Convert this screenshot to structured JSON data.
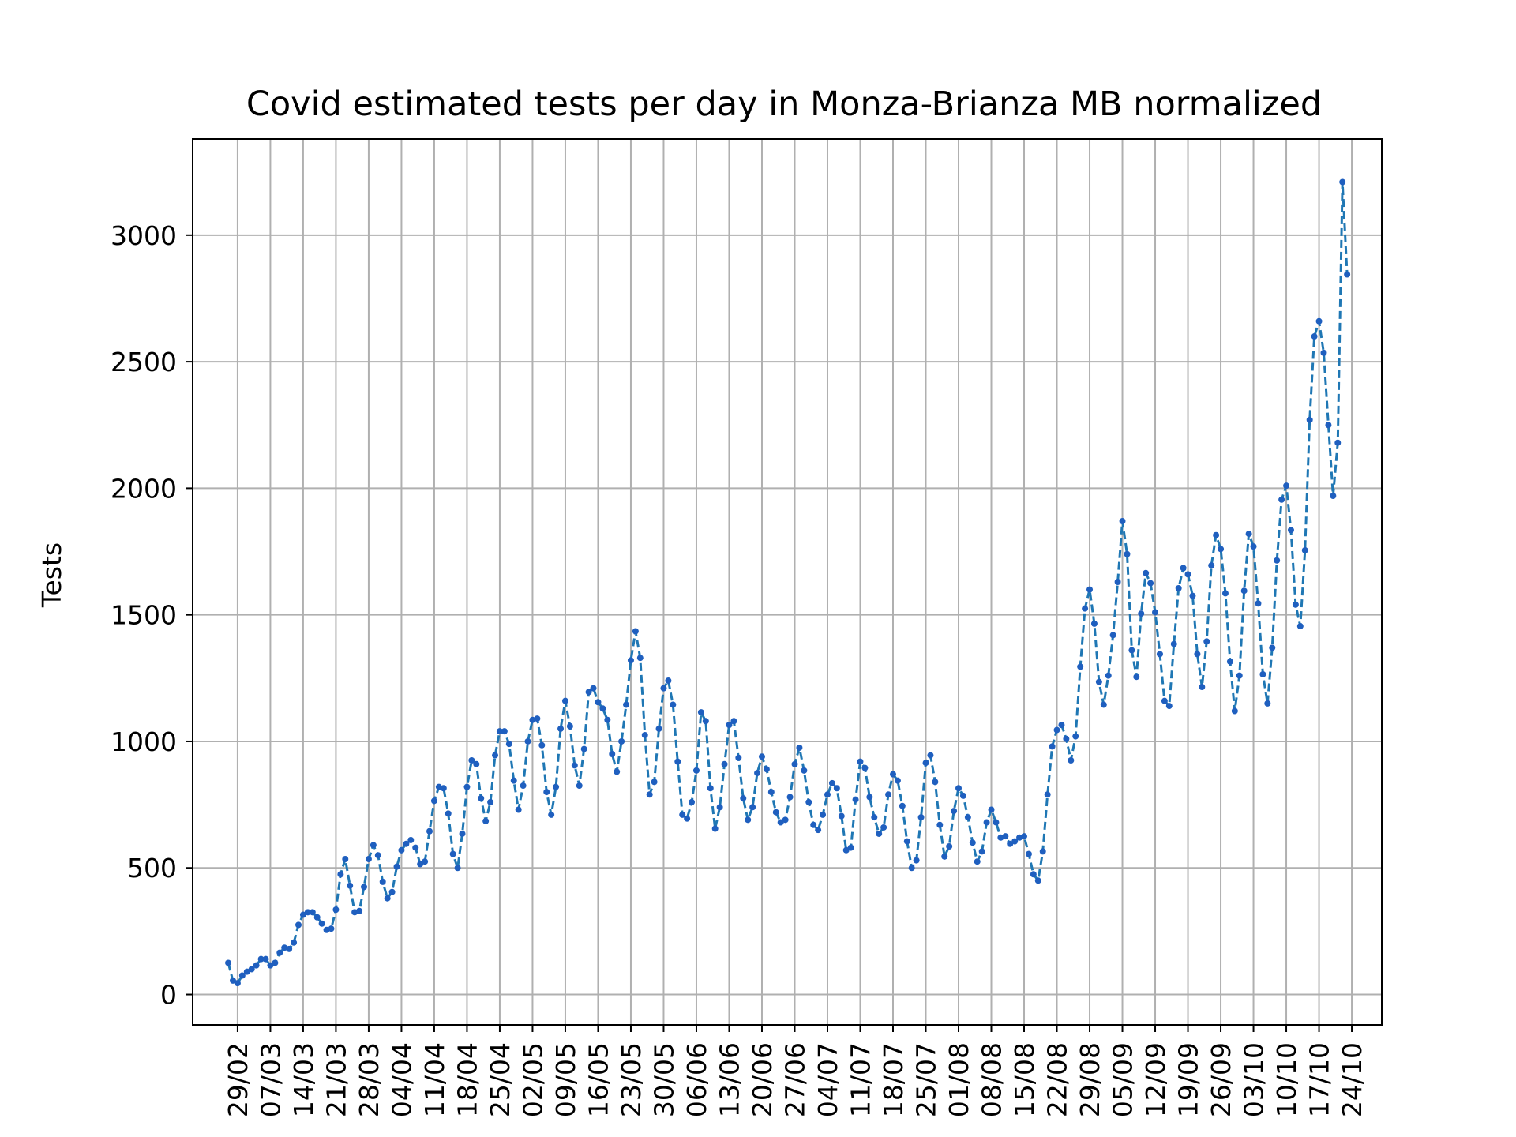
{
  "chart_data": {
    "type": "line",
    "title": "Covid estimated tests per day in Monza-Brianza MB normalized",
    "xlabel": "",
    "ylabel": "Tests",
    "ylim": [
      -120,
      3380
    ],
    "yticks": [
      0,
      500,
      1000,
      1500,
      2000,
      2500,
      3000
    ],
    "xtick_labels": [
      "29/02",
      "07/03",
      "14/03",
      "21/03",
      "28/03",
      "04/04",
      "11/04",
      "18/04",
      "25/04",
      "02/05",
      "09/05",
      "16/05",
      "23/05",
      "30/05",
      "06/06",
      "13/06",
      "20/06",
      "27/06",
      "04/07",
      "11/07",
      "18/07",
      "25/07",
      "01/08",
      "08/08",
      "15/08",
      "22/08",
      "29/08",
      "05/09",
      "12/09",
      "19/09",
      "26/09",
      "03/10",
      "10/10",
      "17/10",
      "24/10"
    ],
    "grid": true,
    "colors": {
      "line": "#1f77b4",
      "marker": "#1f5fbf",
      "grid": "#b0b0b0"
    },
    "series": [
      {
        "name": "",
        "start_date": "2020-02-27",
        "values": [
          125,
          55,
          45,
          75,
          90,
          100,
          115,
          140,
          140,
          115,
          125,
          165,
          185,
          180,
          205,
          275,
          315,
          325,
          325,
          305,
          280,
          255,
          260,
          335,
          475,
          535,
          430,
          325,
          330,
          425,
          535,
          590,
          550,
          445,
          380,
          405,
          505,
          570,
          595,
          610,
          580,
          515,
          525,
          645,
          765,
          820,
          815,
          715,
          555,
          500,
          635,
          820,
          925,
          910,
          775,
          685,
          760,
          945,
          1040,
          1040,
          990,
          845,
          730,
          825,
          1000,
          1085,
          1090,
          985,
          800,
          710,
          820,
          1050,
          1160,
          1060,
          905,
          825,
          970,
          1195,
          1210,
          1155,
          1130,
          1085,
          950,
          880,
          1000,
          1145,
          1320,
          1435,
          1330,
          1025,
          790,
          840,
          1050,
          1210,
          1240,
          1145,
          920,
          710,
          695,
          760,
          885,
          1115,
          1080,
          815,
          655,
          740,
          910,
          1065,
          1080,
          935,
          775,
          690,
          740,
          875,
          940,
          890,
          800,
          720,
          680,
          690,
          780,
          910,
          975,
          885,
          760,
          670,
          650,
          710,
          790,
          835,
          815,
          705,
          570,
          580,
          770,
          920,
          895,
          780,
          700,
          635,
          660,
          790,
          870,
          845,
          745,
          605,
          500,
          530,
          700,
          915,
          945,
          840,
          670,
          545,
          585,
          725,
          815,
          785,
          700,
          600,
          525,
          565,
          680,
          730,
          680,
          620,
          625,
          595,
          605,
          620,
          625,
          555,
          475,
          450,
          565,
          790,
          980,
          1045,
          1065,
          1010,
          925,
          1020,
          1295,
          1525,
          1600,
          1465,
          1235,
          1145,
          1260,
          1420,
          1630,
          1870,
          1740,
          1360,
          1255,
          1505,
          1665,
          1625,
          1510,
          1345,
          1160,
          1140,
          1385,
          1605,
          1685,
          1660,
          1575,
          1345,
          1215,
          1395,
          1695,
          1815,
          1760,
          1585,
          1315,
          1120,
          1260,
          1595,
          1820,
          1770,
          1545,
          1265,
          1150,
          1370,
          1715,
          1955,
          2010,
          1835,
          1540,
          1455,
          1755,
          2270,
          2600,
          2660,
          2535,
          2250,
          1970,
          2180,
          3210,
          2845
        ]
      }
    ]
  }
}
